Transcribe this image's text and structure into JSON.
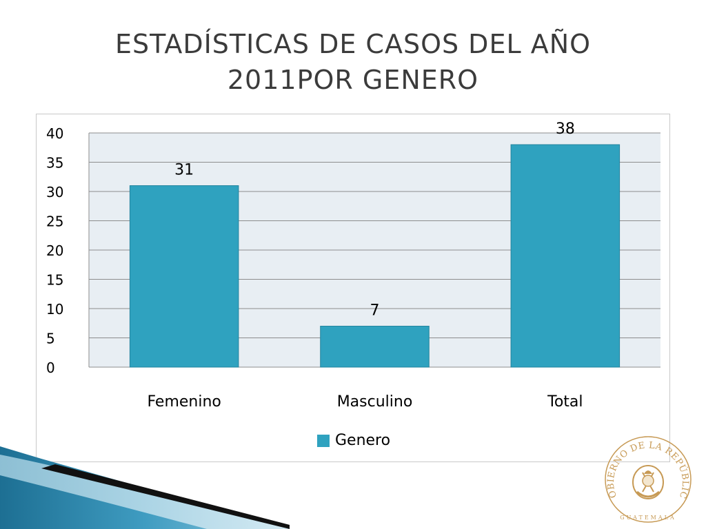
{
  "slide": {
    "title_line1": "ESTADÍSTICAS DE CASOS DEL AÑO",
    "title_line2": "2011POR GENERO"
  },
  "chart_data": {
    "type": "bar",
    "categories": [
      "Femenino",
      "Masculino",
      "Total"
    ],
    "series": [
      {
        "name": "Genero",
        "values": [
          31,
          7,
          38
        ],
        "color": "#2fa2bf"
      }
    ],
    "ylim": [
      0,
      40
    ],
    "yticks": [
      0,
      5,
      10,
      15,
      20,
      25,
      30,
      35,
      40
    ],
    "grid": true,
    "plot_background": "#e8eef3",
    "legend_position": "bottom",
    "data_labels": true
  },
  "logo": {
    "text": "GOBIERNO DE LA REPÚBLICA",
    "subtext": "GUATEMALA",
    "color": "#c79a55"
  }
}
